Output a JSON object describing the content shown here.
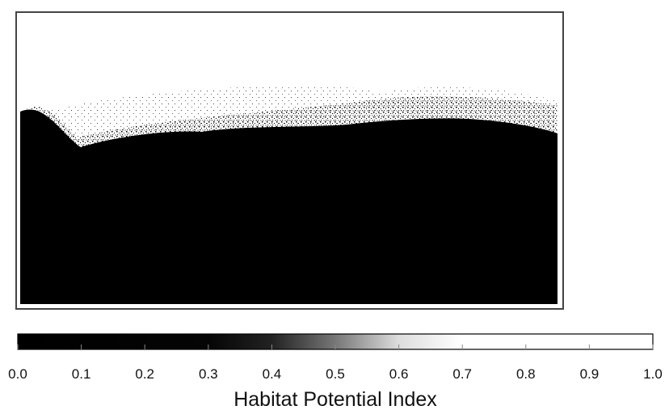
{
  "chart_data": {
    "type": "raster-map",
    "colorbar_label": "Habitat Potential Index",
    "xlim": [
      0,
      1
    ],
    "xticks": [
      {
        "value": 0,
        "label": "0.0"
      },
      {
        "value": 0.1,
        "label": "0.1"
      },
      {
        "value": 0.2,
        "label": "0.2"
      },
      {
        "value": 0.3,
        "label": "0.3"
      },
      {
        "value": 0.4,
        "label": "0.4"
      },
      {
        "value": 0.5,
        "label": "0.5"
      },
      {
        "value": 0.6,
        "label": "0.6"
      },
      {
        "value": 0.7,
        "label": "0.7"
      },
      {
        "value": 0.8,
        "label": "0.8"
      },
      {
        "value": 0.9,
        "label": "0.9"
      },
      {
        "value": 1,
        "label": "1.0"
      }
    ]
  }
}
